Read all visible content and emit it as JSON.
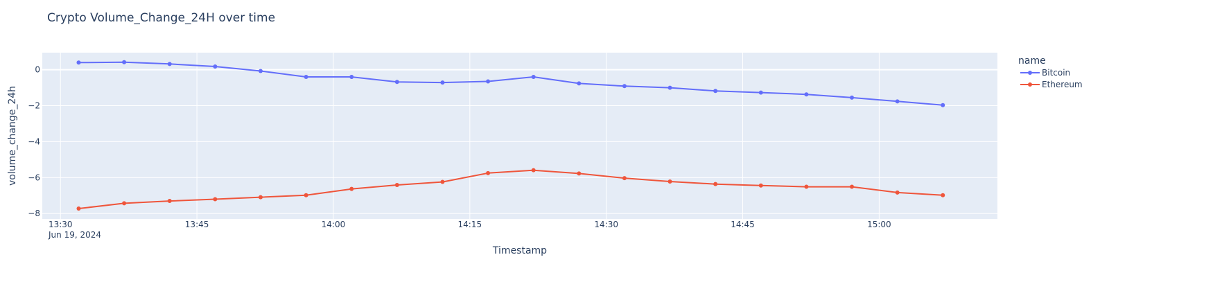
{
  "chart_data": {
    "type": "line",
    "title": "Crypto Volume_Change_24H over time",
    "xlabel": "Timestamp",
    "ylabel": "volume_change_24h",
    "x_axis": {
      "type": "time",
      "range": [
        "2024-06-19 13:28",
        "2024-06-19 15:13"
      ],
      "ticks": [
        "13:30",
        "13:45",
        "14:00",
        "14:15",
        "14:30",
        "14:45",
        "15:00"
      ],
      "tick_times": [
        "2024-06-19 13:30",
        "2024-06-19 13:45",
        "2024-06-19 14:00",
        "2024-06-19 14:15",
        "2024-06-19 14:30",
        "2024-06-19 14:45",
        "2024-06-19 15:00"
      ],
      "date_label": "Jun 19, 2024"
    },
    "y_axis": {
      "range": [
        -8.3,
        0.95
      ],
      "ticks": [
        0,
        -2,
        -4,
        -6,
        -8
      ],
      "tick_labels": [
        "0",
        "−2",
        "−4",
        "−6",
        "−8"
      ]
    },
    "grid": true,
    "legend": {
      "title": "name",
      "position": "right"
    },
    "x": [
      "2024-06-19 13:32",
      "2024-06-19 13:37",
      "2024-06-19 13:42",
      "2024-06-19 13:47",
      "2024-06-19 13:52",
      "2024-06-19 13:57",
      "2024-06-19 14:02",
      "2024-06-19 14:07",
      "2024-06-19 14:12",
      "2024-06-19 14:17",
      "2024-06-19 14:22",
      "2024-06-19 14:27",
      "2024-06-19 14:32",
      "2024-06-19 14:37",
      "2024-06-19 14:42",
      "2024-06-19 14:47",
      "2024-06-19 14:52",
      "2024-06-19 14:57",
      "2024-06-19 15:02",
      "2024-06-19 15:07"
    ],
    "series": [
      {
        "name": "Bitcoin",
        "color": "#636efa",
        "values": [
          0.4,
          0.42,
          0.32,
          0.18,
          -0.07,
          -0.4,
          -0.4,
          -0.68,
          -0.71,
          -0.65,
          -0.4,
          -0.76,
          -0.91,
          -1.0,
          -1.18,
          -1.27,
          -1.37,
          -1.55,
          -1.76,
          -1.97
        ]
      },
      {
        "name": "Ethereum",
        "color": "#ef553b",
        "values": [
          -7.72,
          -7.43,
          -7.3,
          -7.2,
          -7.09,
          -6.98,
          -6.63,
          -6.41,
          -6.24,
          -5.75,
          -5.59,
          -5.77,
          -6.03,
          -6.22,
          -6.36,
          -6.44,
          -6.51,
          -6.51,
          -6.83,
          -6.98
        ]
      }
    ]
  }
}
